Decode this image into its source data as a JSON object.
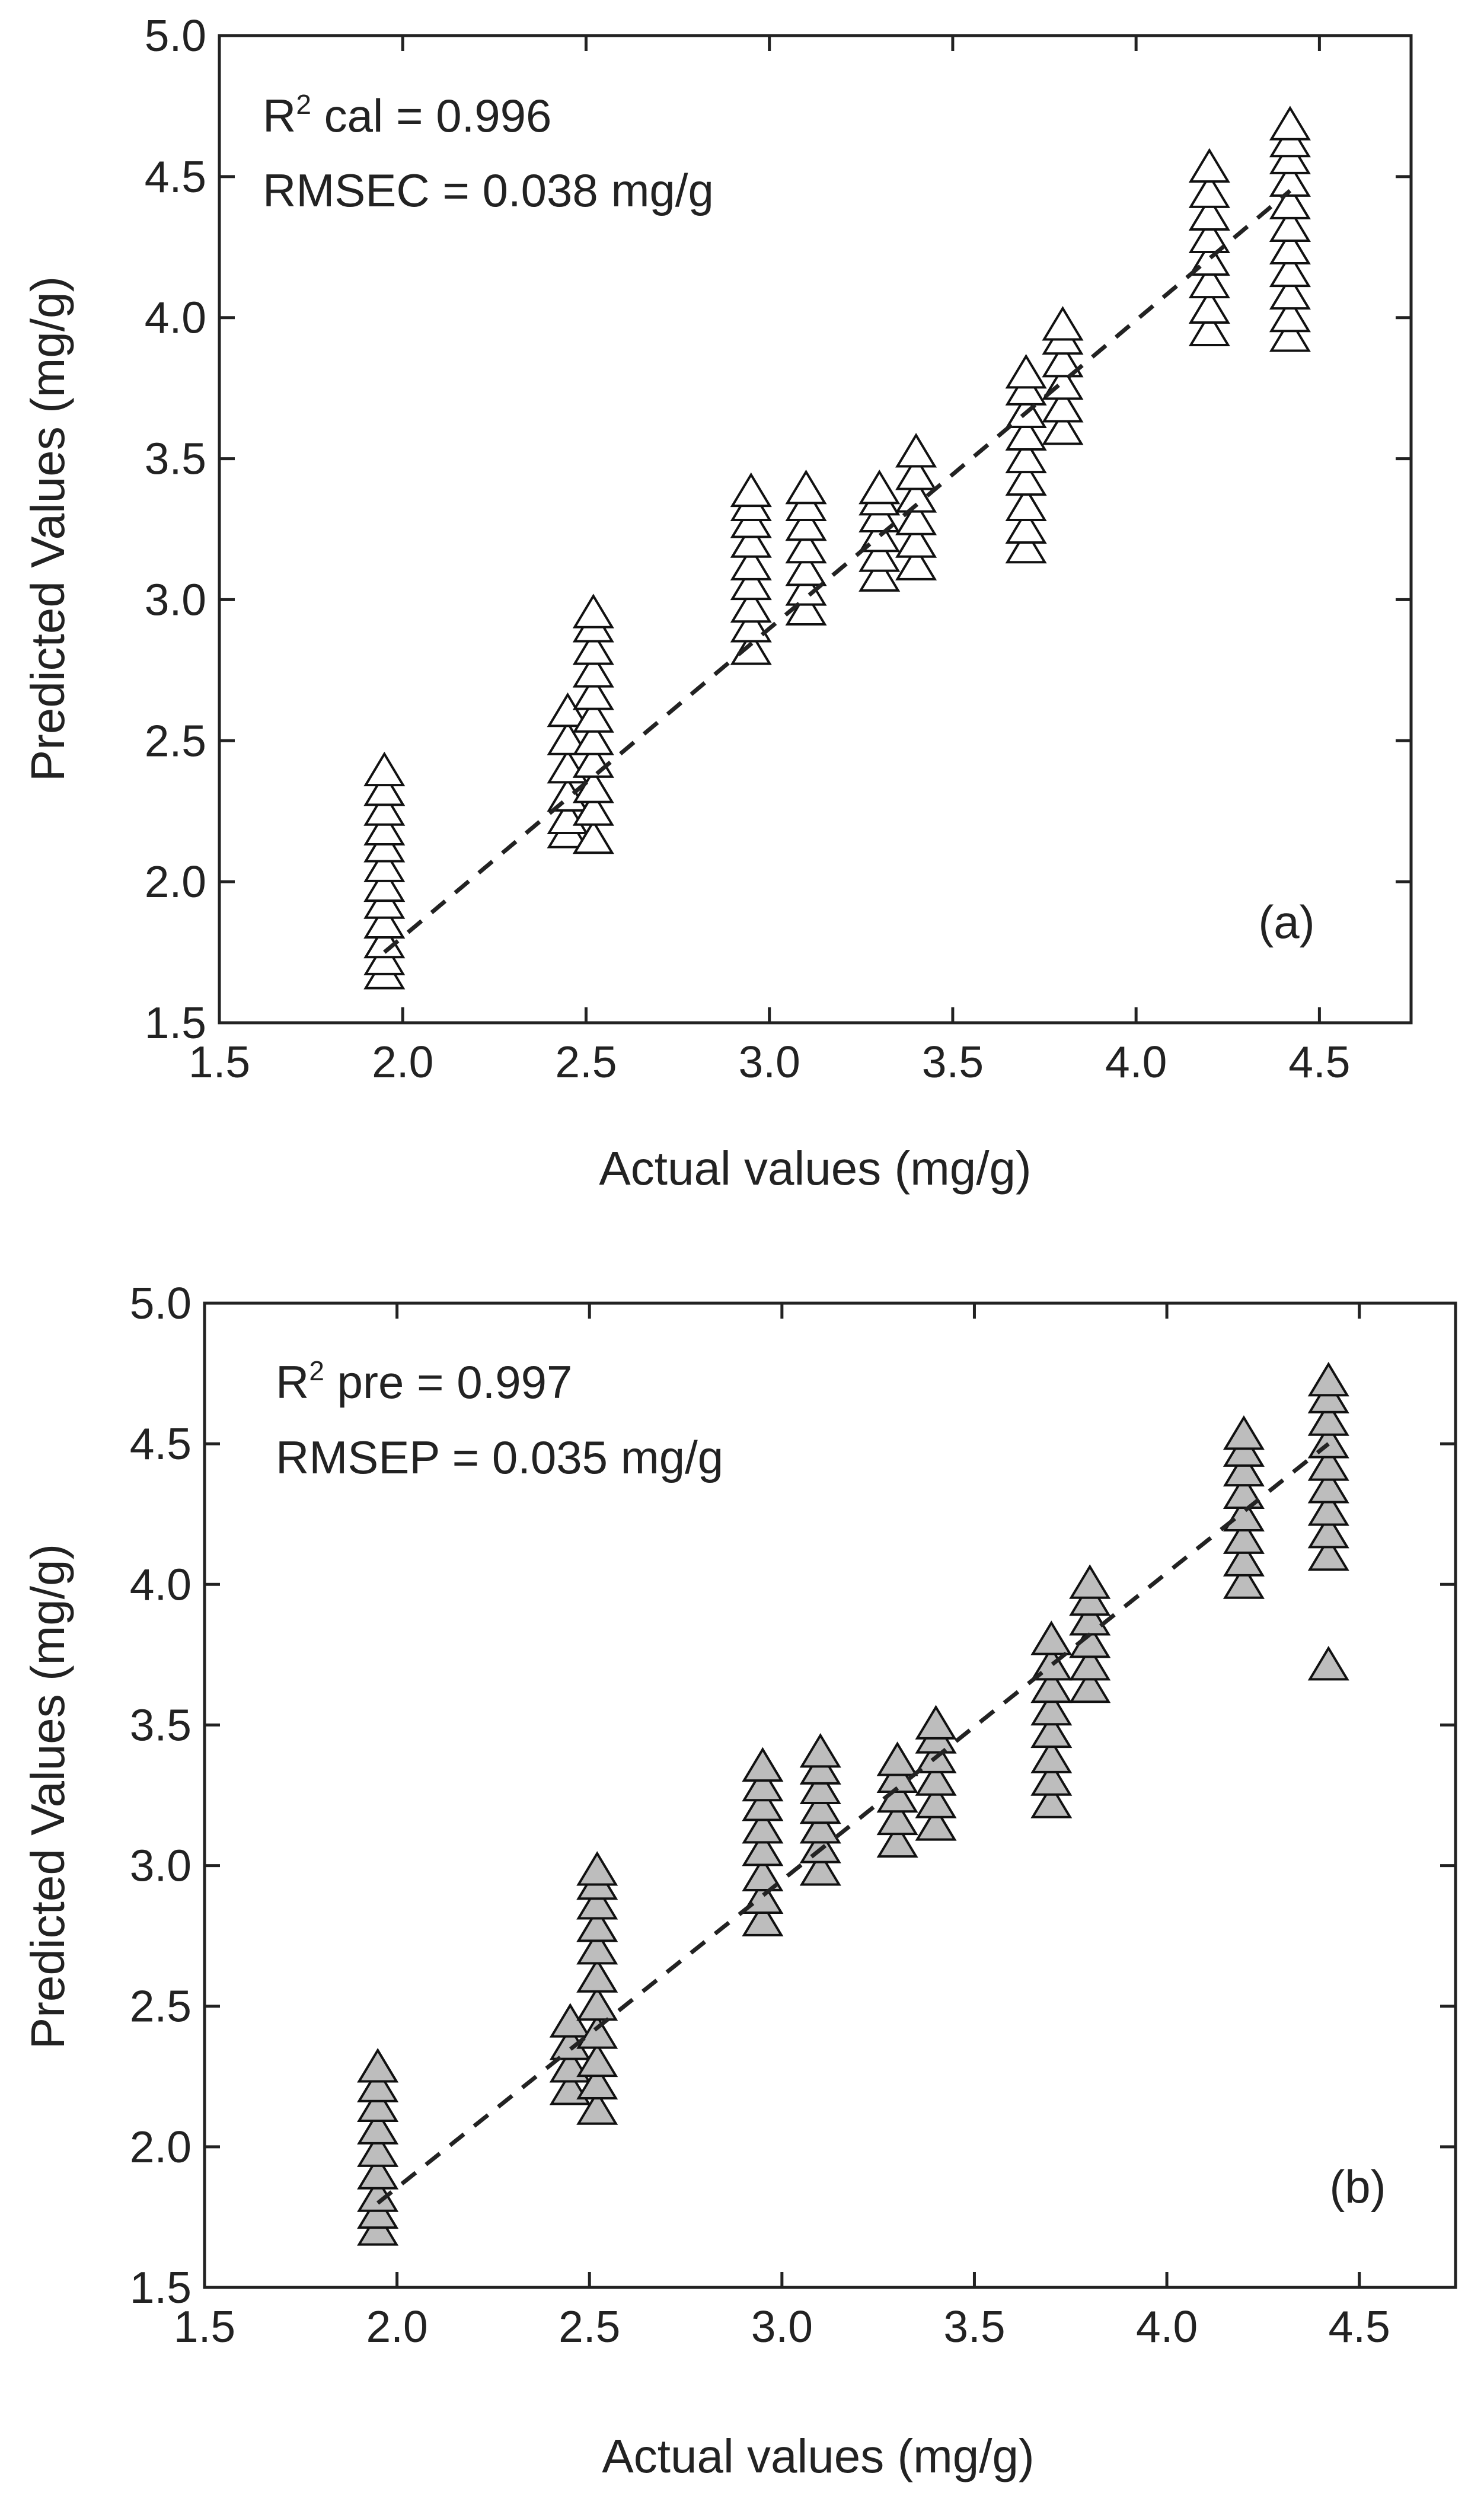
{
  "chart_data": [
    {
      "type": "scatter",
      "panel_label": "(a)",
      "xlabel": "Actual values (mg/g)",
      "ylabel": "Predicted Values (mg/g)",
      "xlim": [
        1.5,
        4.75
      ],
      "ylim": [
        1.5,
        5.0
      ],
      "xticks": [
        "1.5",
        "2.0",
        "2.5",
        "3.0",
        "3.5",
        "4.0",
        "4.5"
      ],
      "yticks": [
        "1.5",
        "2.0",
        "2.5",
        "3.0",
        "3.5",
        "4.0",
        "4.5",
        "5.0"
      ],
      "annotation": {
        "r2_prefix": "R",
        "r2_sup": "2",
        "r2_text": " cal = 0.996",
        "rmse_text": "RMSEC = 0.038 mg/g"
      },
      "marker": "triangle",
      "marker_fill": "#ffffff",
      "fit_line": {
        "x": [
          1.95,
          4.42
        ],
        "y": [
          1.75,
          4.45
        ]
      },
      "groups": [
        {
          "x": 1.95,
          "y": [
            1.67,
            1.72,
            1.78,
            1.85,
            1.92,
            1.98,
            2.05,
            2.12,
            2.18,
            2.25,
            2.32,
            2.39
          ]
        },
        {
          "x": 2.45,
          "y": [
            2.17,
            2.22,
            2.3,
            2.4,
            2.5,
            2.6
          ]
        },
        {
          "x": 2.52,
          "y": [
            2.15,
            2.25,
            2.33,
            2.42,
            2.5,
            2.58,
            2.66,
            2.74,
            2.82,
            2.9,
            2.95
          ]
        },
        {
          "x": 2.95,
          "y": [
            2.82,
            2.9,
            2.97,
            3.05,
            3.12,
            3.2,
            3.27,
            3.33,
            3.38
          ]
        },
        {
          "x": 3.1,
          "y": [
            2.96,
            3.03,
            3.1,
            3.18,
            3.26,
            3.33,
            3.39
          ]
        },
        {
          "x": 3.3,
          "y": [
            3.08,
            3.15,
            3.22,
            3.29,
            3.35,
            3.39
          ]
        },
        {
          "x": 3.4,
          "y": [
            3.12,
            3.2,
            3.28,
            3.36,
            3.44,
            3.52
          ]
        },
        {
          "x": 3.7,
          "y": [
            3.18,
            3.25,
            3.33,
            3.42,
            3.5,
            3.58,
            3.66,
            3.74,
            3.8
          ]
        },
        {
          "x": 3.8,
          "y": [
            3.6,
            3.68,
            3.76,
            3.84,
            3.92,
            3.97
          ]
        },
        {
          "x": 4.2,
          "y": [
            3.95,
            4.03,
            4.12,
            4.2,
            4.28,
            4.36,
            4.44,
            4.53
          ]
        },
        {
          "x": 4.42,
          "y": [
            3.93,
            4.0,
            4.08,
            4.16,
            4.24,
            4.32,
            4.4,
            4.48,
            4.56,
            4.62,
            4.68
          ]
        }
      ]
    },
    {
      "type": "scatter",
      "panel_label": "(b)",
      "xlabel": "Actual values (mg/g)",
      "ylabel": "Predicted Values (mg/g)",
      "xlim": [
        1.5,
        4.75
      ],
      "ylim": [
        1.5,
        5.0
      ],
      "xticks": [
        "1.5",
        "2.0",
        "2.5",
        "3.0",
        "3.5",
        "4.0",
        "4.5"
      ],
      "yticks": [
        "1.5",
        "2.0",
        "2.5",
        "3.0",
        "3.5",
        "4.0",
        "4.5",
        "5.0"
      ],
      "annotation": {
        "r2_prefix": "R",
        "r2_sup": "2",
        "r2_text": " pre = 0.997",
        "rmse_text": "RMSEP = 0.035 mg/g"
      },
      "marker": "triangle",
      "marker_fill": "#bdbdbd",
      "fit_line": {
        "x": [
          1.95,
          4.42
        ],
        "y": [
          1.8,
          4.5
        ]
      },
      "groups": [
        {
          "x": 1.95,
          "y": [
            1.7,
            1.76,
            1.82,
            1.9,
            1.98,
            2.06,
            2.14,
            2.21,
            2.28
          ]
        },
        {
          "x": 2.45,
          "y": [
            2.2,
            2.28,
            2.36,
            2.44
          ]
        },
        {
          "x": 2.52,
          "y": [
            2.13,
            2.22,
            2.3,
            2.4,
            2.5,
            2.6,
            2.7,
            2.78,
            2.86,
            2.93,
            2.98
          ]
        },
        {
          "x": 2.95,
          "y": [
            2.8,
            2.88,
            2.96,
            3.05,
            3.13,
            3.21,
            3.28,
            3.35
          ]
        },
        {
          "x": 3.1,
          "y": [
            2.98,
            3.06,
            3.13,
            3.2,
            3.27,
            3.34,
            3.4
          ]
        },
        {
          "x": 3.3,
          "y": [
            3.08,
            3.16,
            3.24,
            3.31,
            3.37
          ]
        },
        {
          "x": 3.4,
          "y": [
            3.14,
            3.22,
            3.3,
            3.38,
            3.45,
            3.5
          ]
        },
        {
          "x": 3.7,
          "y": [
            3.22,
            3.3,
            3.38,
            3.47,
            3.55,
            3.63,
            3.71,
            3.8
          ]
        },
        {
          "x": 3.8,
          "y": [
            3.63,
            3.71,
            3.79,
            3.87,
            3.94,
            4.0
          ]
        },
        {
          "x": 4.2,
          "y": [
            4.0,
            4.08,
            4.16,
            4.24,
            4.32,
            4.4,
            4.47,
            4.53
          ]
        },
        {
          "x": 4.42,
          "y": [
            3.71,
            4.1,
            4.18,
            4.26,
            4.34,
            4.42,
            4.5,
            4.58,
            4.66,
            4.72
          ]
        }
      ]
    }
  ]
}
